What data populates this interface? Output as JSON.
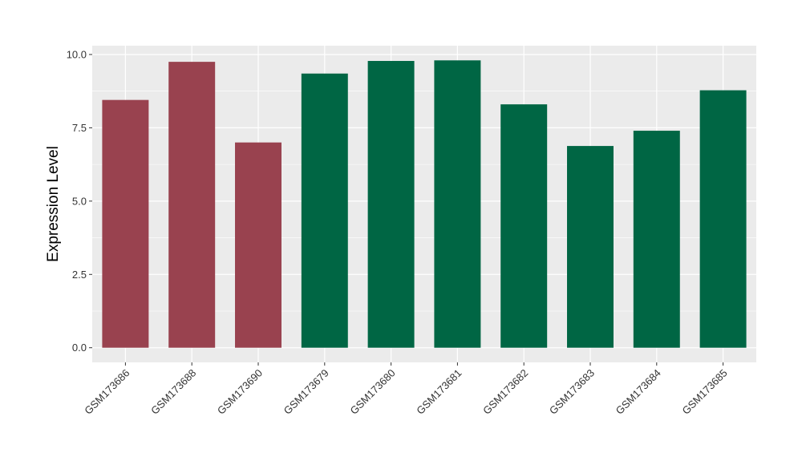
{
  "chart_data": {
    "type": "bar",
    "title": "",
    "xlabel": "",
    "ylabel": "Expression Level",
    "ylim": [
      -0.5,
      10.3
    ],
    "yticks": [
      0.0,
      2.5,
      5.0,
      7.5,
      10.0
    ],
    "ytick_labels": [
      "0.0",
      "2.5",
      "5.0",
      "7.5",
      "10.0"
    ],
    "grid": true,
    "legend": "none",
    "categories": [
      "GSM173686",
      "GSM173688",
      "GSM173690",
      "GSM173679",
      "GSM173680",
      "GSM173681",
      "GSM173682",
      "GSM173683",
      "GSM173684",
      "GSM173685"
    ],
    "values": [
      8.45,
      9.75,
      7.0,
      9.35,
      9.78,
      9.8,
      8.3,
      6.88,
      7.4,
      8.78
    ],
    "group": [
      "a",
      "a",
      "a",
      "b",
      "b",
      "b",
      "b",
      "b",
      "b",
      "b"
    ],
    "colors": {
      "a": "#99424f",
      "b": "#006644"
    },
    "panel_background": "#ebebeb",
    "grid_color": "#ffffff"
  }
}
